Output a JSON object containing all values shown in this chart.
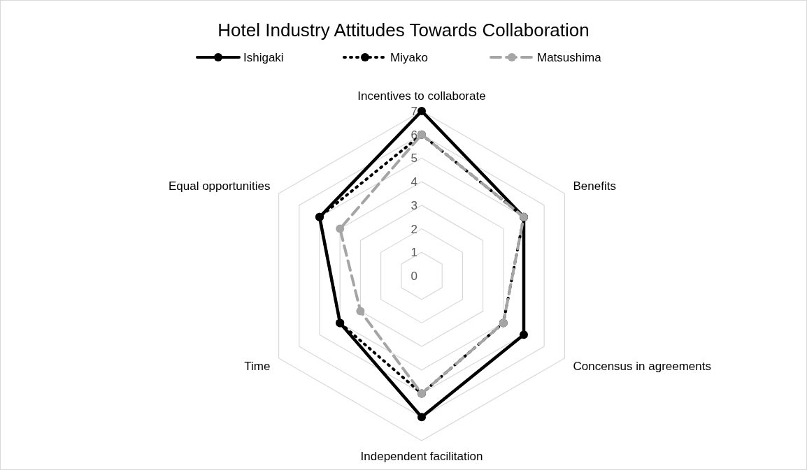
{
  "chart_data": {
    "type": "radar",
    "title": "Hotel Industry Attitudes Towards Collaboration",
    "categories": [
      "Incentives to collaborate",
      "Benefits",
      "Concensus in agreements",
      "Independent facilitation",
      "Time",
      "Equal opportunities"
    ],
    "series": [
      {
        "name": "Ishigaki",
        "color": "#000000",
        "line_style": "solid",
        "values": [
          7,
          5,
          5,
          6,
          4,
          5
        ]
      },
      {
        "name": "Miyako",
        "color": "#000000",
        "line_style": "dotted",
        "values": [
          6,
          5,
          4,
          5,
          4,
          5
        ]
      },
      {
        "name": "Matsushima",
        "color": "#a5a5a5",
        "line_style": "dashed",
        "values": [
          6,
          5,
          4,
          5,
          3,
          4
        ]
      }
    ],
    "ylim": [
      0,
      7
    ],
    "yticks": [
      0,
      1,
      2,
      3,
      4,
      5,
      6,
      7
    ],
    "grid": true,
    "legend": "top",
    "marker": "circle"
  }
}
